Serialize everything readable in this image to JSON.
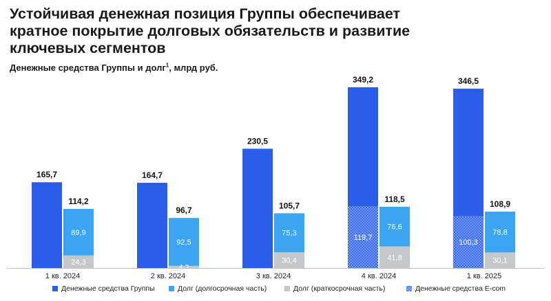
{
  "title_lines": [
    "Устойчивая денежная позиция Группы обеспечивает",
    "кратное покрытие долговых обязательств и развитие",
    "ключевых сегментов"
  ],
  "subtitle": "Денежные средства Группы и долг",
  "subtitle_sup": "1",
  "subtitle_suffix": ", млрд руб.",
  "legend": [
    {
      "label": "Денежные средства Группы",
      "color": "#2b5ee8",
      "pattern": "solid"
    },
    {
      "label": "Долг (долгосрочная часть)",
      "color": "#3ba4f3",
      "pattern": "solid"
    },
    {
      "label": "Долг (краткосрочная часть)",
      "color": "#c4c7cc",
      "pattern": "solid"
    },
    {
      "label": "Денежные средства E-com",
      "color": "#2b5ee8",
      "pattern": "hatch"
    }
  ],
  "chart_data": {
    "type": "bar",
    "title": "Денежные средства Группы и долг, млрд руб.",
    "categories": [
      "1 кв. 2024",
      "2 кв. 2024",
      "3 кв. 2024",
      "4 кв. 2024",
      "1 кв. 2025"
    ],
    "cash": {
      "name": "Денежные средства Группы",
      "totals": [
        165.7,
        164.7,
        230.5,
        349.2,
        346.5
      ],
      "total_labels": [
        "165,7",
        "164,7",
        "230,5",
        "349,2",
        "346,5"
      ],
      "ecom": [
        null,
        null,
        null,
        119.7,
        100.3
      ],
      "ecom_labels": [
        "",
        "",
        "",
        "119,7",
        "100,3"
      ]
    },
    "debt": {
      "totals": [
        114.2,
        96.7,
        105.7,
        118.5,
        108.9
      ],
      "total_labels": [
        "114,2",
        "96,7",
        "105,7",
        "118,5",
        "108,9"
      ],
      "long_term": {
        "name": "Долг (долгосрочная часть)",
        "values": [
          89.9,
          92.5,
          75.3,
          76.6,
          78.8
        ],
        "labels": [
          "89,9",
          "92,5",
          "75,3",
          "76,6",
          "78,8"
        ]
      },
      "short_term": {
        "name": "Долг (краткосрочная часть)",
        "values": [
          24.3,
          4.2,
          30.4,
          41.8,
          30.1
        ],
        "labels": [
          "24,3",
          "4,2",
          "30,4",
          "41,8",
          "30,1"
        ]
      }
    },
    "colors": {
      "cash": "#2b5ee8",
      "long_term": "#3ba4f3",
      "short_term": "#c4c7cc",
      "hatch_line": "#8fb0ff",
      "axis": "#bfbfbf",
      "inner_label": "#ffffff",
      "total_label": "#111111"
    },
    "ylim": [
      0,
      349.2
    ],
    "legend_position": "bottom"
  }
}
